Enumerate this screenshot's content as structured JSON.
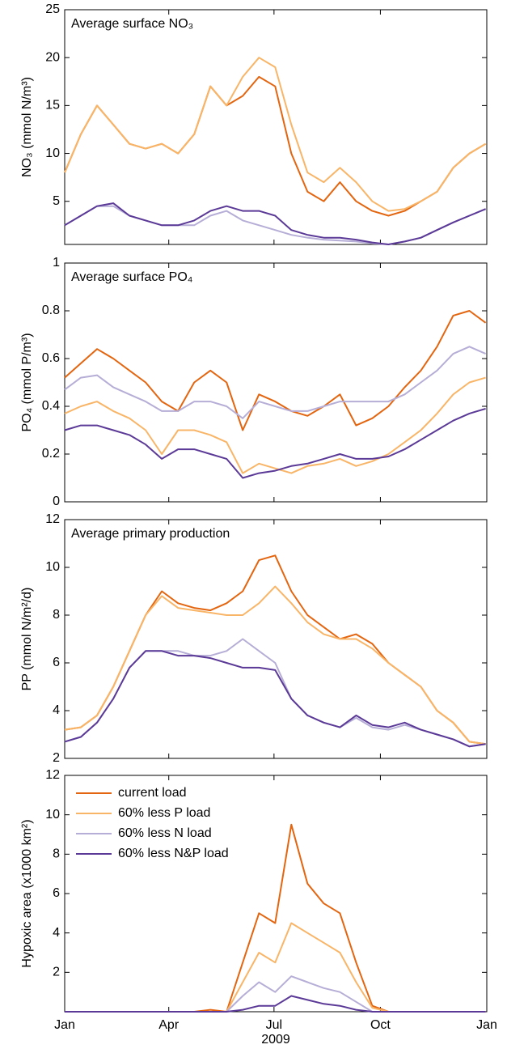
{
  "chart_data": [
    {
      "type": "line",
      "title": "Average surface NO₃",
      "y_label": "NO₃ (mmol N/m³)",
      "xlim": [
        0,
        365
      ],
      "ylim": [
        0.5,
        25
      ],
      "yticks": [
        5,
        10,
        15,
        20,
        25
      ],
      "x": [
        0,
        14,
        28,
        42,
        56,
        70,
        84,
        98,
        112,
        126,
        140,
        154,
        168,
        182,
        196,
        210,
        224,
        238,
        252,
        266,
        280,
        294,
        308,
        322,
        336,
        350,
        364
      ],
      "series": [
        {
          "color": "#e3650f",
          "values": [
            8,
            12,
            15,
            13,
            11,
            10.5,
            11,
            10,
            12,
            17,
            15,
            16,
            18,
            17,
            10,
            6,
            5,
            7,
            5,
            4,
            3.5,
            4,
            5,
            6,
            8.5,
            10,
            11
          ]
        },
        {
          "color": "#f9b567",
          "values": [
            8,
            12,
            15,
            13,
            11,
            10.5,
            11,
            10,
            12,
            17,
            15,
            18,
            20,
            19,
            13,
            8,
            7,
            8.5,
            7,
            5,
            4,
            4.2,
            5,
            6,
            8.5,
            10,
            11
          ]
        },
        {
          "color": "#b6aed6",
          "values": [
            2.5,
            3.5,
            4.5,
            4.5,
            3.5,
            3,
            2.5,
            2.5,
            2.5,
            3.5,
            4,
            3,
            2.5,
            2,
            1.5,
            1.2,
            1,
            0.9,
            0.8,
            0.6,
            0.5,
            0.8,
            1.2,
            2,
            2.8,
            3.5,
            4.2
          ]
        },
        {
          "color": "#5b3a97",
          "values": [
            2.5,
            3.5,
            4.5,
            4.8,
            3.5,
            3,
            2.5,
            2.5,
            3,
            4,
            4.5,
            4,
            4,
            3.5,
            2,
            1.5,
            1.2,
            1.2,
            1,
            0.7,
            0.5,
            0.8,
            1.2,
            2,
            2.8,
            3.5,
            4.2
          ]
        }
      ]
    },
    {
      "type": "line",
      "title": "Average surface PO₄",
      "y_label": "PO₄ (mmol P/m³)",
      "xlim": [
        0,
        365
      ],
      "ylim": [
        0,
        1
      ],
      "yticks": [
        0,
        0.2,
        0.4,
        0.6,
        0.8,
        1
      ],
      "x": [
        0,
        14,
        28,
        42,
        56,
        70,
        84,
        98,
        112,
        126,
        140,
        154,
        168,
        182,
        196,
        210,
        224,
        238,
        252,
        266,
        280,
        294,
        308,
        322,
        336,
        350,
        364
      ],
      "series": [
        {
          "color": "#e3650f",
          "values": [
            0.52,
            0.58,
            0.64,
            0.6,
            0.55,
            0.5,
            0.42,
            0.38,
            0.5,
            0.55,
            0.5,
            0.3,
            0.45,
            0.42,
            0.38,
            0.36,
            0.4,
            0.45,
            0.32,
            0.35,
            0.4,
            0.48,
            0.55,
            0.65,
            0.78,
            0.8,
            0.75
          ]
        },
        {
          "color": "#f9b567",
          "values": [
            0.37,
            0.4,
            0.42,
            0.38,
            0.35,
            0.3,
            0.2,
            0.3,
            0.3,
            0.28,
            0.25,
            0.12,
            0.16,
            0.14,
            0.12,
            0.15,
            0.16,
            0.18,
            0.15,
            0.17,
            0.2,
            0.25,
            0.3,
            0.37,
            0.45,
            0.5,
            0.52
          ]
        },
        {
          "color": "#b6aed6",
          "values": [
            0.47,
            0.52,
            0.53,
            0.48,
            0.45,
            0.42,
            0.38,
            0.38,
            0.42,
            0.42,
            0.4,
            0.35,
            0.42,
            0.4,
            0.38,
            0.38,
            0.4,
            0.42,
            0.42,
            0.42,
            0.42,
            0.45,
            0.5,
            0.55,
            0.62,
            0.65,
            0.62
          ]
        },
        {
          "color": "#5b3a97",
          "values": [
            0.3,
            0.32,
            0.32,
            0.3,
            0.28,
            0.24,
            0.18,
            0.22,
            0.22,
            0.2,
            0.18,
            0.1,
            0.12,
            0.13,
            0.15,
            0.16,
            0.18,
            0.2,
            0.18,
            0.18,
            0.19,
            0.22,
            0.26,
            0.3,
            0.34,
            0.37,
            0.39
          ]
        }
      ]
    },
    {
      "type": "line",
      "title": "Average primary production",
      "y_label": "PP (mmol N/m²/d)",
      "xlim": [
        0,
        365
      ],
      "ylim": [
        2,
        12
      ],
      "yticks": [
        2,
        4,
        6,
        8,
        10,
        12
      ],
      "x": [
        0,
        14,
        28,
        42,
        56,
        70,
        84,
        98,
        112,
        126,
        140,
        154,
        168,
        182,
        196,
        210,
        224,
        238,
        252,
        266,
        280,
        294,
        308,
        322,
        336,
        350,
        364
      ],
      "series": [
        {
          "color": "#e3650f",
          "values": [
            3.2,
            3.3,
            3.8,
            5,
            6.5,
            8,
            9,
            8.5,
            8.3,
            8.2,
            8.5,
            9,
            10.3,
            10.5,
            9,
            8,
            7.5,
            7,
            7.2,
            6.8,
            6,
            5.5,
            5,
            4,
            3.5,
            2.7,
            2.6
          ]
        },
        {
          "color": "#f9b567",
          "values": [
            3.2,
            3.3,
            3.8,
            5,
            6.5,
            8,
            8.8,
            8.3,
            8.2,
            8.1,
            8,
            8,
            8.5,
            9.2,
            8.5,
            7.7,
            7.2,
            7,
            7,
            6.6,
            6,
            5.5,
            5,
            4,
            3.5,
            2.7,
            2.6
          ]
        },
        {
          "color": "#b6aed6",
          "values": [
            2.7,
            2.9,
            3.5,
            4.5,
            5.8,
            6.5,
            6.5,
            6.5,
            6.3,
            6.3,
            6.5,
            7,
            6.5,
            6,
            4.5,
            3.8,
            3.5,
            3.3,
            3.7,
            3.3,
            3.2,
            3.4,
            3.2,
            3,
            2.8,
            2.5,
            2.6
          ]
        },
        {
          "color": "#5b3a97",
          "values": [
            2.7,
            2.9,
            3.5,
            4.5,
            5.8,
            6.5,
            6.5,
            6.3,
            6.3,
            6.2,
            6,
            5.8,
            5.8,
            5.7,
            4.5,
            3.8,
            3.5,
            3.3,
            3.8,
            3.4,
            3.3,
            3.5,
            3.2,
            3,
            2.8,
            2.5,
            2.6
          ]
        }
      ]
    },
    {
      "type": "line",
      "y_label": "Hypoxic area (x1000 km²)",
      "x_label": "2009",
      "xlim": [
        0,
        365
      ],
      "ylim": [
        0,
        12
      ],
      "yticks": [
        2,
        4,
        6,
        8,
        10,
        12
      ],
      "xticks": [
        {
          "value": 0,
          "label": "Jan"
        },
        {
          "value": 90,
          "label": "Apr"
        },
        {
          "value": 181,
          "label": "Jul"
        },
        {
          "value": 273,
          "label": "Oct"
        },
        {
          "value": 365,
          "label": "Jan"
        }
      ],
      "x": [
        0,
        14,
        28,
        42,
        56,
        70,
        84,
        98,
        112,
        126,
        140,
        154,
        168,
        182,
        196,
        210,
        224,
        238,
        252,
        266,
        280,
        294,
        308,
        322,
        336,
        350,
        364
      ],
      "series": [
        {
          "name": "current load",
          "color": "#e3650f",
          "values": [
            0,
            0,
            0,
            0,
            0,
            0,
            0,
            0,
            0,
            0.1,
            0,
            2.5,
            5,
            4.5,
            9.5,
            6.5,
            5.5,
            5,
            2.5,
            0.3,
            0,
            0,
            0,
            0,
            0,
            0,
            0
          ]
        },
        {
          "name": "60% less P load",
          "color": "#f9b567",
          "values": [
            0,
            0,
            0,
            0,
            0,
            0,
            0,
            0,
            0,
            0,
            0,
            1.5,
            3,
            2.5,
            4.5,
            4,
            3.5,
            3,
            1.5,
            0.2,
            0,
            0,
            0,
            0,
            0,
            0,
            0
          ]
        },
        {
          "name": "60% less N load",
          "color": "#b6aed6",
          "values": [
            0,
            0,
            0,
            0,
            0,
            0,
            0,
            0,
            0,
            0,
            0,
            0.8,
            1.5,
            1,
            1.8,
            1.5,
            1.2,
            1,
            0.5,
            0,
            0,
            0,
            0,
            0,
            0,
            0,
            0
          ]
        },
        {
          "name": "60% less N&P load",
          "color": "#5b3a97",
          "values": [
            0,
            0,
            0,
            0,
            0,
            0,
            0,
            0,
            0,
            0,
            0,
            0.1,
            0.3,
            0.3,
            0.8,
            0.6,
            0.4,
            0.3,
            0.1,
            0,
            0,
            0,
            0,
            0,
            0,
            0,
            0
          ]
        }
      ]
    }
  ]
}
